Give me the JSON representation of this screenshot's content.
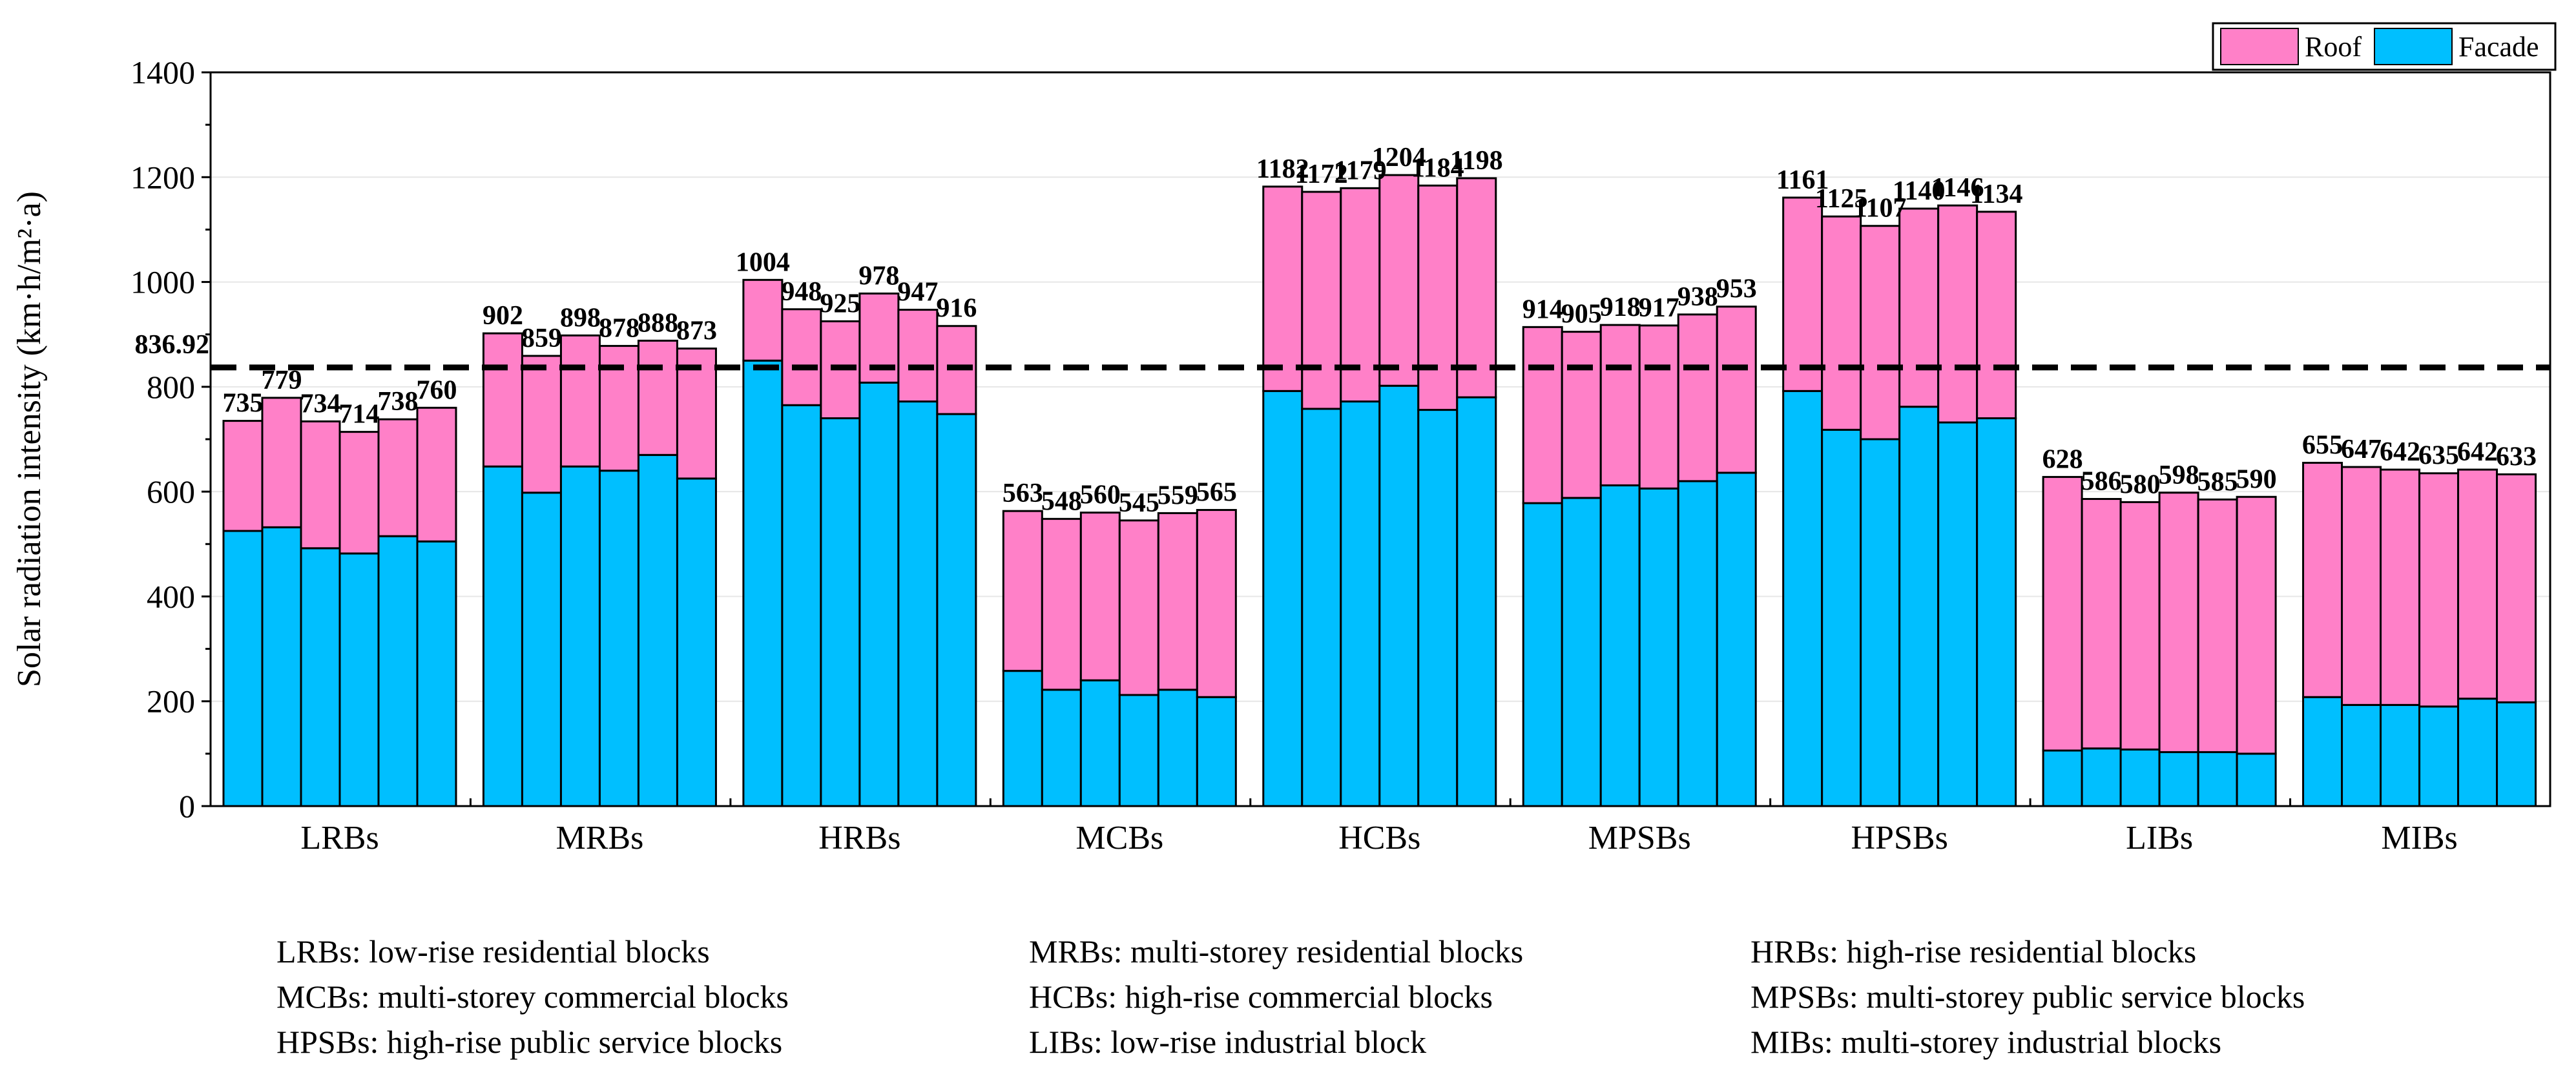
{
  "chart_data": {
    "type": "bar",
    "stacked": true,
    "ylabel": "Solar radiation intensity (km·h/m²·a)",
    "ylim": [
      0,
      1400
    ],
    "yticks": [
      0,
      200,
      400,
      600,
      800,
      1000,
      1200,
      1400
    ],
    "groups": [
      {
        "name": "LRBs",
        "totals": [
          735,
          779,
          734,
          714,
          738,
          760
        ],
        "facade": [
          525,
          532,
          492,
          482,
          515,
          505
        ]
      },
      {
        "name": "MRBs",
        "totals": [
          902,
          859,
          898,
          878,
          888,
          873
        ],
        "facade": [
          648,
          598,
          648,
          640,
          670,
          625
        ]
      },
      {
        "name": "HRBs",
        "totals": [
          1004,
          948,
          925,
          978,
          947,
          916
        ],
        "facade": [
          850,
          765,
          740,
          808,
          772,
          748
        ]
      },
      {
        "name": "MCBs",
        "totals": [
          563,
          548,
          560,
          545,
          559,
          565
        ],
        "facade": [
          258,
          222,
          240,
          212,
          222,
          208
        ]
      },
      {
        "name": "HCBs",
        "totals": [
          1182,
          1172,
          1179,
          1204,
          1184,
          1198
        ],
        "facade": [
          792,
          758,
          772,
          802,
          756,
          780
        ]
      },
      {
        "name": "MPSBs",
        "totals": [
          914,
          905,
          918,
          917,
          938,
          953
        ],
        "facade": [
          578,
          588,
          612,
          606,
          620,
          636
        ]
      },
      {
        "name": "HPSBs",
        "totals": [
          1161,
          1125,
          1107,
          1140,
          1146,
          1134
        ],
        "facade": [
          792,
          718,
          700,
          762,
          732,
          740
        ]
      },
      {
        "name": "LIBs",
        "totals": [
          628,
          586,
          580,
          598,
          585,
          590
        ],
        "facade": [
          106,
          110,
          108,
          103,
          103,
          100
        ]
      },
      {
        "name": "MIBs",
        "totals": [
          655,
          647,
          642,
          635,
          642,
          633
        ],
        "facade": [
          208,
          193,
          193,
          190,
          205,
          198
        ]
      }
    ],
    "series": [
      {
        "name": "Roof",
        "color": "#ff80c8"
      },
      {
        "name": "Facade",
        "color": "#00bfff"
      }
    ],
    "reference_line": {
      "value": 836.92,
      "label": "836.92"
    },
    "legend_position": "top-right"
  },
  "notes": [
    "LRBs:  low-rise residential blocks",
    "MRBs: multi-storey residential blocks",
    "HRBs: high-rise residential blocks",
    "MCBs: multi-storey commercial blocks",
    "HCBs: high-rise commercial blocks",
    "MPSBs: multi-storey public service blocks",
    "HPSBs: high-rise public service blocks",
    "LIBs: low-rise industrial block",
    "MIBs: multi-storey industrial blocks"
  ]
}
